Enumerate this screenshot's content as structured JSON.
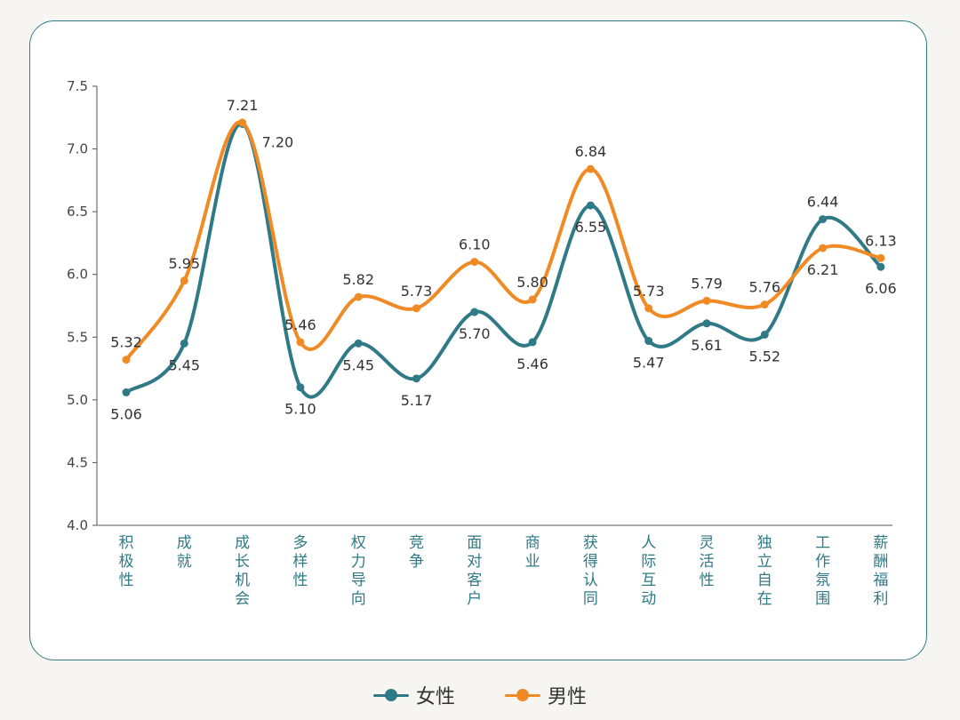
{
  "chart_data": {
    "type": "line",
    "categories": [
      "积极性",
      "成就",
      "成长机会",
      "多样性",
      "权力导向",
      "竞争",
      "面对客户",
      "商业",
      "获得认同",
      "人际互动",
      "灵活性",
      "独立自在",
      "工作氛围",
      "薪酬福利"
    ],
    "series": [
      {
        "name": "女性",
        "color": "#2f7a86",
        "values": [
          5.06,
          5.45,
          7.2,
          5.1,
          5.45,
          5.17,
          5.7,
          5.46,
          6.55,
          5.47,
          5.61,
          5.52,
          6.44,
          6.06
        ],
        "labels": [
          "5.06",
          "5.45",
          "7.20",
          "5.10",
          "5.45",
          "5.17",
          "5.70",
          "5.46",
          "6.55",
          "5.47",
          "5.61",
          "5.52",
          "6.44",
          "6.06"
        ]
      },
      {
        "name": "男性",
        "color": "#f08a24",
        "values": [
          5.32,
          5.95,
          7.21,
          5.46,
          5.82,
          5.73,
          6.1,
          5.8,
          6.84,
          5.73,
          5.79,
          5.76,
          6.21,
          6.13
        ],
        "labels": [
          "5.32",
          "5.95",
          "7.21",
          "5.46",
          "5.82",
          "5.73",
          "6.10",
          "5.80",
          "6.84",
          "5.73",
          "5.79",
          "5.76",
          "6.21",
          "6.13"
        ]
      }
    ],
    "yticks": [
      "4.0",
      "4.5",
      "5.0",
      "5.5",
      "6.0",
      "6.5",
      "7.0",
      "7.5"
    ],
    "ylim": [
      4.0,
      7.5
    ],
    "title": "",
    "xlabel": "",
    "ylabel": "",
    "grid": false,
    "smooth": true,
    "legend_position": "bottom-center"
  }
}
